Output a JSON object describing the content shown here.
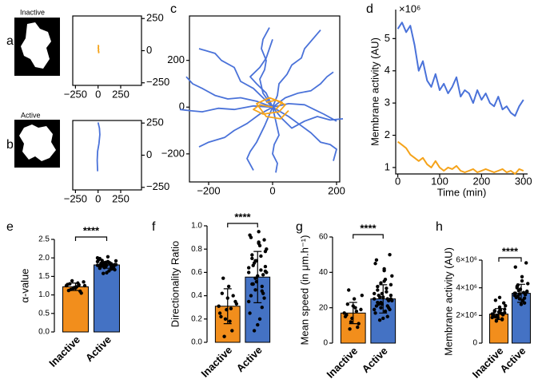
{
  "chart_data": [
    {
      "type": "track",
      "panel": "a",
      "image_label": "Inactive",
      "xlim": [
        -280,
        480
      ],
      "ylim": [
        -270,
        270
      ],
      "xticks": [
        {
          "value": -250,
          "label": "−250"
        },
        0,
        250
      ],
      "yticks": [
        250,
        0,
        {
          "value": -250,
          "label": "−250"
        }
      ],
      "series": [
        {
          "color": "#f5a31a",
          "x": [
            5,
            8,
            3,
            6,
            2,
            5,
            0
          ],
          "values": [
            -20,
            -10,
            0,
            10,
            20,
            35,
            45
          ]
        }
      ]
    },
    {
      "type": "track",
      "panel": "b",
      "image_label": "Active",
      "xlim": [
        -280,
        480
      ],
      "ylim": [
        -270,
        270
      ],
      "xticks": [
        {
          "value": -250,
          "label": "−250"
        },
        0,
        250
      ],
      "yticks": [
        250,
        0,
        {
          "value": -250,
          "label": "−250"
        }
      ],
      "series": [
        {
          "color": "#4a72d9",
          "x": [
            0,
            15,
            20,
            10,
            -5,
            -10,
            -5
          ],
          "values": [
            255,
            210,
            160,
            90,
            30,
            -40,
            -125
          ]
        }
      ]
    },
    {
      "type": "track",
      "panel": "c",
      "xlim": [
        -260,
        210
      ],
      "ylim": [
        -320,
        390
      ],
      "xticks": [
        {
          "value": -200,
          "label": "−200"
        },
        0,
        200
      ],
      "yticks": [
        200,
        0,
        {
          "value": -200,
          "label": "−200"
        }
      ],
      "series": [
        {
          "color": "#4a72d9",
          "x": [
            0,
            -30,
            -60,
            -100,
            -120,
            -160,
            -180,
            -230
          ],
          "values": [
            0,
            40,
            80,
            110,
            170,
            200,
            230,
            250
          ]
        },
        {
          "color": "#4a72d9",
          "x": [
            0,
            -30,
            -40,
            -25,
            -20,
            -35,
            -30,
            -10
          ],
          "values": [
            0,
            60,
            120,
            160,
            200,
            250,
            290,
            340
          ]
        },
        {
          "color": "#4a72d9",
          "x": [
            0,
            15,
            20,
            45,
            60,
            90,
            100,
            150
          ],
          "values": [
            0,
            50,
            100,
            140,
            180,
            210,
            250,
            330
          ]
        },
        {
          "color": "#4a72d9",
          "x": [
            0,
            40,
            80,
            120,
            150,
            170,
            190
          ],
          "values": [
            0,
            40,
            60,
            70,
            100,
            130,
            150
          ]
        },
        {
          "color": "#4a72d9",
          "x": [
            0,
            50,
            100,
            130,
            160,
            200
          ],
          "values": [
            0,
            15,
            10,
            -10,
            -30,
            -60
          ]
        },
        {
          "color": "#4a72d9",
          "x": [
            0,
            50,
            90,
            120,
            150,
            180,
            200,
            190
          ],
          "values": [
            0,
            -40,
            -80,
            -110,
            -150,
            -160,
            -180,
            -230
          ]
        },
        {
          "color": "#4a72d9",
          "x": [
            0,
            10,
            20,
            5,
            0,
            15,
            10
          ],
          "values": [
            0,
            -60,
            -120,
            -160,
            -200,
            -240,
            -280
          ]
        },
        {
          "color": "#4a72d9",
          "x": [
            0,
            -40,
            -80,
            -120,
            -150,
            -200,
            -230
          ],
          "values": [
            0,
            -30,
            -70,
            -100,
            -130,
            -150,
            -170
          ]
        },
        {
          "color": "#4a72d9",
          "x": [
            0,
            -60,
            -120,
            -170,
            -220,
            -260,
            -290
          ],
          "values": [
            0,
            5,
            -10,
            -5,
            -20,
            -15,
            -10
          ]
        },
        {
          "color": "#4a72d9",
          "x": [
            0,
            -50,
            -100,
            -140,
            -180,
            -220,
            -250,
            -270
          ],
          "values": [
            0,
            25,
            40,
            35,
            50,
            80,
            100,
            130
          ]
        },
        {
          "color": "#4a72d9",
          "x": [
            0,
            -25,
            -50,
            -70,
            -80,
            -60
          ],
          "values": [
            0,
            -80,
            -150,
            -190,
            -220,
            -270
          ]
        },
        {
          "color": "#4a72d9",
          "x": [
            0,
            30,
            60,
            100,
            140,
            180,
            220
          ],
          "values": [
            0,
            -50,
            -90,
            -60,
            -40,
            -55,
            -50
          ]
        },
        {
          "color": "#4a72d9",
          "x": [
            0,
            -20,
            -50,
            -70,
            -40,
            -20,
            0
          ],
          "values": [
            0,
            60,
            100,
            130,
            170,
            210,
            290
          ]
        },
        {
          "color": "#f5a31a",
          "x": [
            0,
            -40,
            -60,
            -30,
            20,
            40,
            10,
            -20
          ],
          "values": [
            0,
            10,
            -10,
            -30,
            -20,
            10,
            30,
            20
          ]
        },
        {
          "color": "#f5a31a",
          "x": [
            10,
            30,
            -10,
            -50,
            -20,
            25,
            50
          ],
          "values": [
            -10,
            20,
            40,
            15,
            -40,
            -50,
            -15
          ]
        }
      ]
    },
    {
      "type": "line",
      "panel": "d",
      "ylabel": "Membrane activity (AU)",
      "xlabel": "Time (min)",
      "exponent": "×10⁶",
      "xlim": [
        -5,
        310
      ],
      "ylim": [
        0.8,
        5.9
      ],
      "xticks": [
        0,
        100,
        200,
        300
      ],
      "yticks": [
        1,
        2,
        3,
        4,
        5
      ],
      "x": [
        0,
        10,
        20,
        30,
        40,
        50,
        60,
        70,
        80,
        90,
        100,
        110,
        120,
        130,
        140,
        150,
        160,
        170,
        180,
        190,
        200,
        210,
        220,
        230,
        240,
        250,
        260,
        270,
        280,
        290,
        300
      ],
      "series": [
        {
          "color": "#4a72d9",
          "values": [
            5.3,
            5.5,
            5.2,
            5.4,
            4.8,
            4.0,
            4.3,
            3.7,
            3.5,
            3.9,
            3.4,
            3.6,
            3.3,
            3.5,
            3.8,
            3.2,
            3.4,
            3.3,
            3.0,
            3.4,
            3.1,
            3.3,
            3.0,
            2.9,
            3.2,
            2.8,
            2.9,
            2.7,
            2.6,
            2.9,
            3.1
          ]
        },
        {
          "color": "#f5a31a",
          "values": [
            1.8,
            1.7,
            1.6,
            1.4,
            1.3,
            1.2,
            1.3,
            1.1,
            1.0,
            1.2,
            1.0,
            0.9,
            1.0,
            0.95,
            1.05,
            0.9,
            0.85,
            0.9,
            0.95,
            0.85,
            0.9,
            0.95,
            0.9,
            0.85,
            0.9,
            0.95,
            0.85,
            0.9,
            0.8,
            0.95,
            0.9
          ]
        }
      ]
    },
    {
      "type": "bar",
      "panel": "e",
      "ylabel": "α-value",
      "significance": "****",
      "categories": [
        "Inactive",
        "Active"
      ],
      "colors": [
        "#f28e1c",
        "#4472c4"
      ],
      "values": [
        1.22,
        1.81
      ],
      "errors": [
        0.1,
        0.09
      ],
      "ylim": [
        0,
        2.5
      ],
      "yticks": [
        {
          "value": 0,
          "label": "0.0"
        },
        0.5,
        {
          "value": 1,
          "label": "1.0"
        },
        1.5,
        {
          "value": 2,
          "label": "2.0"
        },
        2.5
      ],
      "points": [
        [
          1.25,
          1.3,
          1.18,
          1.22,
          1.1,
          1.35,
          1.28,
          1.15,
          1.2,
          1.32,
          1.05,
          1.25,
          1.12,
          1.38,
          1.19,
          1.27
        ],
        [
          1.8,
          1.85,
          1.75,
          1.9,
          1.7,
          1.82,
          1.95,
          1.78,
          1.88,
          1.65,
          1.8,
          1.92,
          1.72,
          1.86,
          1.6,
          1.83,
          1.77,
          2.0,
          1.81,
          1.74,
          1.89,
          1.84,
          1.68,
          1.79,
          1.93,
          1.76,
          1.87,
          1.71,
          1.82,
          1.98,
          1.58,
          1.8,
          1.85,
          1.73,
          1.9,
          1.78,
          1.83,
          2.03,
          1.76,
          1.81
        ]
      ]
    },
    {
      "type": "bar",
      "panel": "f",
      "ylabel": "Directionality Ratio",
      "significance": "****",
      "categories": [
        "Inactive",
        "Active"
      ],
      "colors": [
        "#f28e1c",
        "#4472c4"
      ],
      "values": [
        0.31,
        0.56
      ],
      "errors": [
        0.15,
        0.22
      ],
      "ylim": [
        0,
        1
      ],
      "yticks": [
        {
          "value": 0,
          "label": "0.0"
        },
        0.2,
        0.4,
        0.6,
        0.8,
        {
          "value": 1,
          "label": "1.0"
        }
      ],
      "points": [
        [
          0.31,
          0.42,
          0.2,
          0.48,
          0.1,
          0.35,
          0.25,
          0.55,
          0.28,
          0.18,
          0.4,
          0.33,
          0.22,
          0.05,
          0.38,
          0.29
        ],
        [
          0.6,
          0.75,
          0.45,
          0.85,
          0.3,
          0.65,
          0.92,
          0.5,
          0.7,
          0.2,
          0.58,
          0.8,
          0.4,
          0.68,
          0.15,
          0.62,
          0.88,
          0.35,
          0.72,
          0.55,
          0.95,
          0.48,
          0.78,
          0.25,
          0.66,
          0.52,
          0.83,
          0.42,
          0.6,
          0.9,
          0.1,
          0.57,
          0.74,
          0.38,
          0.64,
          0.5,
          0.7,
          0.86,
          0.44,
          0.61
        ]
      ]
    },
    {
      "type": "bar",
      "panel": "g",
      "ylabel": "Mean speed (in μm.h⁻¹)",
      "significance": "****",
      "categories": [
        "Inactive",
        "Active"
      ],
      "colors": [
        "#f28e1c",
        "#4472c4"
      ],
      "values": [
        17,
        25
      ],
      "errors": [
        6,
        8
      ],
      "ylim": [
        0,
        60
      ],
      "yticks": [
        0,
        20,
        40,
        60
      ],
      "points": [
        [
          17,
          22,
          12,
          25,
          9,
          19,
          15,
          30,
          14,
          20,
          11,
          27,
          16,
          8,
          21,
          18
        ],
        [
          25,
          30,
          20,
          35,
          15,
          27,
          45,
          22,
          28,
          18,
          24,
          38,
          21,
          26,
          14,
          29,
          50,
          19,
          32,
          23,
          41,
          25,
          33,
          17,
          27,
          22,
          36,
          20,
          24,
          47,
          13,
          26,
          31,
          19,
          28,
          23,
          34,
          42,
          21,
          25
        ]
      ]
    },
    {
      "type": "bar",
      "panel": "h",
      "ylabel": "Membrane activity (AU)",
      "significance": "****",
      "categories": [
        "Inactive",
        "Active"
      ],
      "colors": [
        "#f28e1c",
        "#4472c4"
      ],
      "values": [
        2100000,
        3600000
      ],
      "errors": [
        400000,
        650000
      ],
      "ylim": [
        0,
        6000000
      ],
      "yticks": [
        0,
        {
          "value": 2000000,
          "label": "2×10⁶"
        },
        {
          "value": 4000000,
          "label": "4×10⁶"
        },
        {
          "value": 6000000,
          "label": "6×10⁶"
        }
      ],
      "points": [
        [
          2100000,
          2300000,
          1900000,
          2600000,
          1700000,
          2200000,
          2000000,
          3100000,
          1800000,
          2400000,
          2050000,
          2700000,
          1950000,
          1600000,
          2250000,
          2150000,
          2900000,
          1850000,
          2350000,
          2000000,
          3300000,
          1750000,
          2450000,
          2100000,
          1900000
        ],
        [
          3600000,
          4000000,
          3200000,
          4500000,
          2900000,
          3700000,
          5500000,
          3400000,
          3900000,
          3100000,
          3500000,
          4300000,
          3300000,
          3800000,
          2800000,
          3650000,
          5800000,
          3450000,
          4100000,
          3550000,
          4800000,
          3250000,
          3750000,
          3600000,
          4200000
        ]
      ]
    }
  ]
}
